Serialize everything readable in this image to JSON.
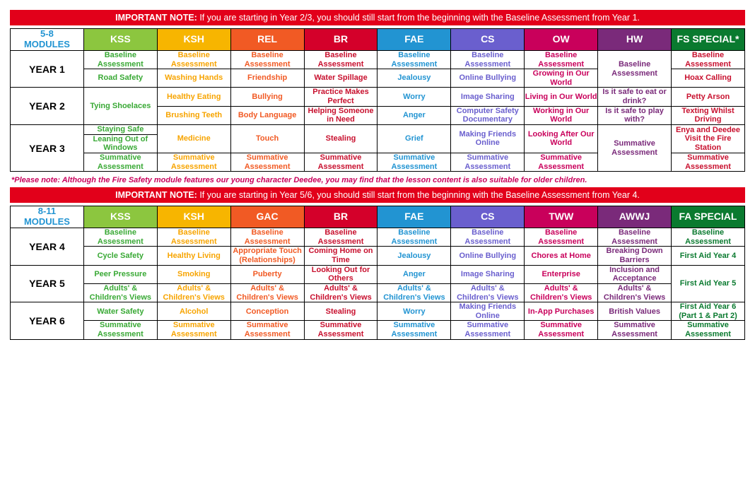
{
  "notes": {
    "top": {
      "bold": "IMPORTANT NOTE:",
      "rest": " If you are starting in Year 2/3, you should still start from the beginning with the Baseline Assessment from Year 1."
    },
    "mid_footnote": "*Please note: Although the Fire Safety module features our young character Deedee, you may find that the lesson content is also suitable for older children.",
    "mid": {
      "bold": "IMPORTANT NOTE:",
      "rest": " If you are starting in Year 5/6, you should still start from the beginning with the Baseline Assessment from Year 4."
    }
  },
  "palette": {
    "kss": "#8cc63f",
    "ksh": "#f7b500",
    "rel": "#f15a24",
    "gac": "#f15a24",
    "br": "#d4002a",
    "fae": "#2294d2",
    "cs": "#6a5fce",
    "ow": "#c9005b",
    "tww": "#c9005b",
    "hw": "#7a2a7a",
    "awwj": "#7a2a7a",
    "fs": "#0a7a2f",
    "fa": "#0a7a2f",
    "kss_text": "#39a935",
    "ksh_text": "#f7a400",
    "rel_text": "#f15a24",
    "br_text": "#c8102e",
    "fae_text": "#2294d2",
    "cs_text": "#6a5fce",
    "ow_text": "#c9005b",
    "hw_text": "#7a2a7a",
    "fs_text": "#c8102e",
    "fa_text": "#0a7a2f"
  },
  "table1": {
    "mods_label_line1": "5-8",
    "mods_label_line2": "MODULES",
    "headers": [
      {
        "key": "kss",
        "label": "KSS"
      },
      {
        "key": "ksh",
        "label": "KSH"
      },
      {
        "key": "rel",
        "label": "REL"
      },
      {
        "key": "br",
        "label": "BR"
      },
      {
        "key": "fae",
        "label": "FAE"
      },
      {
        "key": "cs",
        "label": "CS"
      },
      {
        "key": "ow",
        "label": "OW"
      },
      {
        "key": "hw",
        "label": "HW"
      },
      {
        "key": "fs",
        "label": "FS SPECIAL*"
      }
    ],
    "rows": [
      {
        "year": "YEAR 1",
        "yr_rows": 2,
        "subrows": [
          [
            "Baseline Assessment",
            "Baseline Assessment",
            "Baseline Assessment",
            "Baseline Assessment",
            "Baseline Assessment",
            "Baseline Assessment",
            "Baseline Assessment",
            null,
            "Baseline Assessment"
          ],
          [
            "Road Safety",
            "Washing Hands",
            "Friendship",
            "Water Spillage",
            "Jealousy",
            "Online Bullying",
            "Growing in Our World",
            {
              "text": "Baseline Assessment",
              "rs": 1
            },
            "Hoax Calling"
          ]
        ]
      },
      {
        "year": "YEAR 2",
        "yr_rows": 2,
        "subrows": [
          [
            {
              "text": "Tying Shoelaces",
              "rs": 2
            },
            "Healthy Eating",
            "Bullying",
            "Practice Makes Perfect",
            "Worry",
            "Image Sharing",
            "Living in Our World",
            {
              "text": "Is it safe to eat or drink?",
              "rs": 2
            },
            "Petty Arson"
          ],
          [
            null,
            "Brushing Teeth",
            "Body Language",
            "Helping Someone in Need",
            "Anger",
            "Computer Safety Documentary",
            "Working in Our World",
            null,
            "Texting Whilst Driving"
          ]
        ]
      },
      {
        "year": "YEAR 3",
        "yr_rows": 3,
        "subrows": [
          [
            "Staying Safe",
            {
              "text": "Medicine",
              "rs": 2
            },
            {
              "text": "Touch",
              "rs": 2
            },
            {
              "text": "Stealing",
              "rs": 2
            },
            {
              "text": "Grief",
              "rs": 2
            },
            {
              "text": "Making Friends Online",
              "rs": 2
            },
            {
              "text": "Looking After Our World",
              "rs": 2
            },
            {
              "text": "Is it safe to play with?",
              "rs": 1
            },
            {
              "text": "Enya and Deedee Visit the Fire Station",
              "rs": 2
            }
          ],
          [
            "Leaning Out of Windows",
            null,
            null,
            null,
            null,
            null,
            null,
            {
              "text": "Summative Assessment",
              "rs": 2
            },
            null
          ],
          [
            "Summative Assessment",
            "Summative Assessment",
            "Summative Assessment",
            "Summative Assessment",
            "Summative Assessment",
            "Summative Assessment",
            "Summative Assessment",
            null,
            "Summative Assessment"
          ]
        ]
      }
    ]
  },
  "table2": {
    "mods_label_line1": "8-11",
    "mods_label_line2": "MODULES",
    "headers": [
      {
        "key": "kss",
        "label": "KSS"
      },
      {
        "key": "ksh",
        "label": "KSH"
      },
      {
        "key": "gac",
        "label": "GAC"
      },
      {
        "key": "br",
        "label": "BR"
      },
      {
        "key": "fae",
        "label": "FAE"
      },
      {
        "key": "cs",
        "label": "CS"
      },
      {
        "key": "tww",
        "label": "TWW"
      },
      {
        "key": "awwj",
        "label": "AWWJ"
      },
      {
        "key": "fa",
        "label": "FA SPECIAL"
      }
    ],
    "rows": [
      {
        "year": "YEAR 4",
        "yr_rows": 2,
        "subrows": [
          [
            "Baseline Assessment",
            "Baseline Assessment",
            "Baseline Assessment",
            "Baseline Assessment",
            "Baseline Assessment",
            "Baseline Assessment",
            "Baseline Assessment",
            "Baseline Assessment",
            "Baseline Assessment"
          ],
          [
            "Cycle Safety",
            "Healthy Living",
            "Appropriate Touch (Relationships)",
            "Coming Home on Time",
            "Jealousy",
            "Online Bullying",
            "Chores at Home",
            "Breaking Down Barriers",
            "First Aid Year 4"
          ]
        ]
      },
      {
        "year": "YEAR 5",
        "yr_rows": 2,
        "subrows": [
          [
            "Peer Pressure",
            "Smoking",
            "Puberty",
            "Looking Out for Others",
            "Anger",
            "Image Sharing",
            "Enterprise",
            "Inclusion and Acceptance",
            {
              "text": "First Aid Year 5",
              "rs": 2
            }
          ],
          [
            "Adults' & Children's Views",
            "Adults' & Children's Views",
            "Adults' & Children's Views",
            "Adults' & Children's Views",
            "Adults' & Children's Views",
            "Adults' & Children's Views",
            "Adults' & Children's Views",
            "Adults' & Children's Views",
            null
          ]
        ]
      },
      {
        "year": "YEAR 6",
        "yr_rows": 2,
        "subrows": [
          [
            "Water Safety",
            "Alcohol",
            "Conception",
            "Stealing",
            "Worry",
            "Making Friends Online",
            "In-App Purchases",
            "British Values",
            "First Aid Year 6 (Part 1 & Part 2)"
          ],
          [
            "Summative Assessment",
            "Summative Assessment",
            "Summative Assessment",
            "Summative Assessment",
            "Summative Assessment",
            "Summative Assessment",
            "Summative Assessment",
            "Summative Assessment",
            "Summative Assessment"
          ]
        ]
      }
    ]
  },
  "text_color_map": {
    "kss": "kss_text",
    "ksh": "ksh_text",
    "rel": "rel_text",
    "gac": "rel_text",
    "br": "br_text",
    "fae": "fae_text",
    "cs": "cs_text",
    "ow": "ow_text",
    "tww": "ow_text",
    "hw": "hw_text",
    "awwj": "hw_text",
    "fs": "fs_text",
    "fa": "fa_text"
  }
}
